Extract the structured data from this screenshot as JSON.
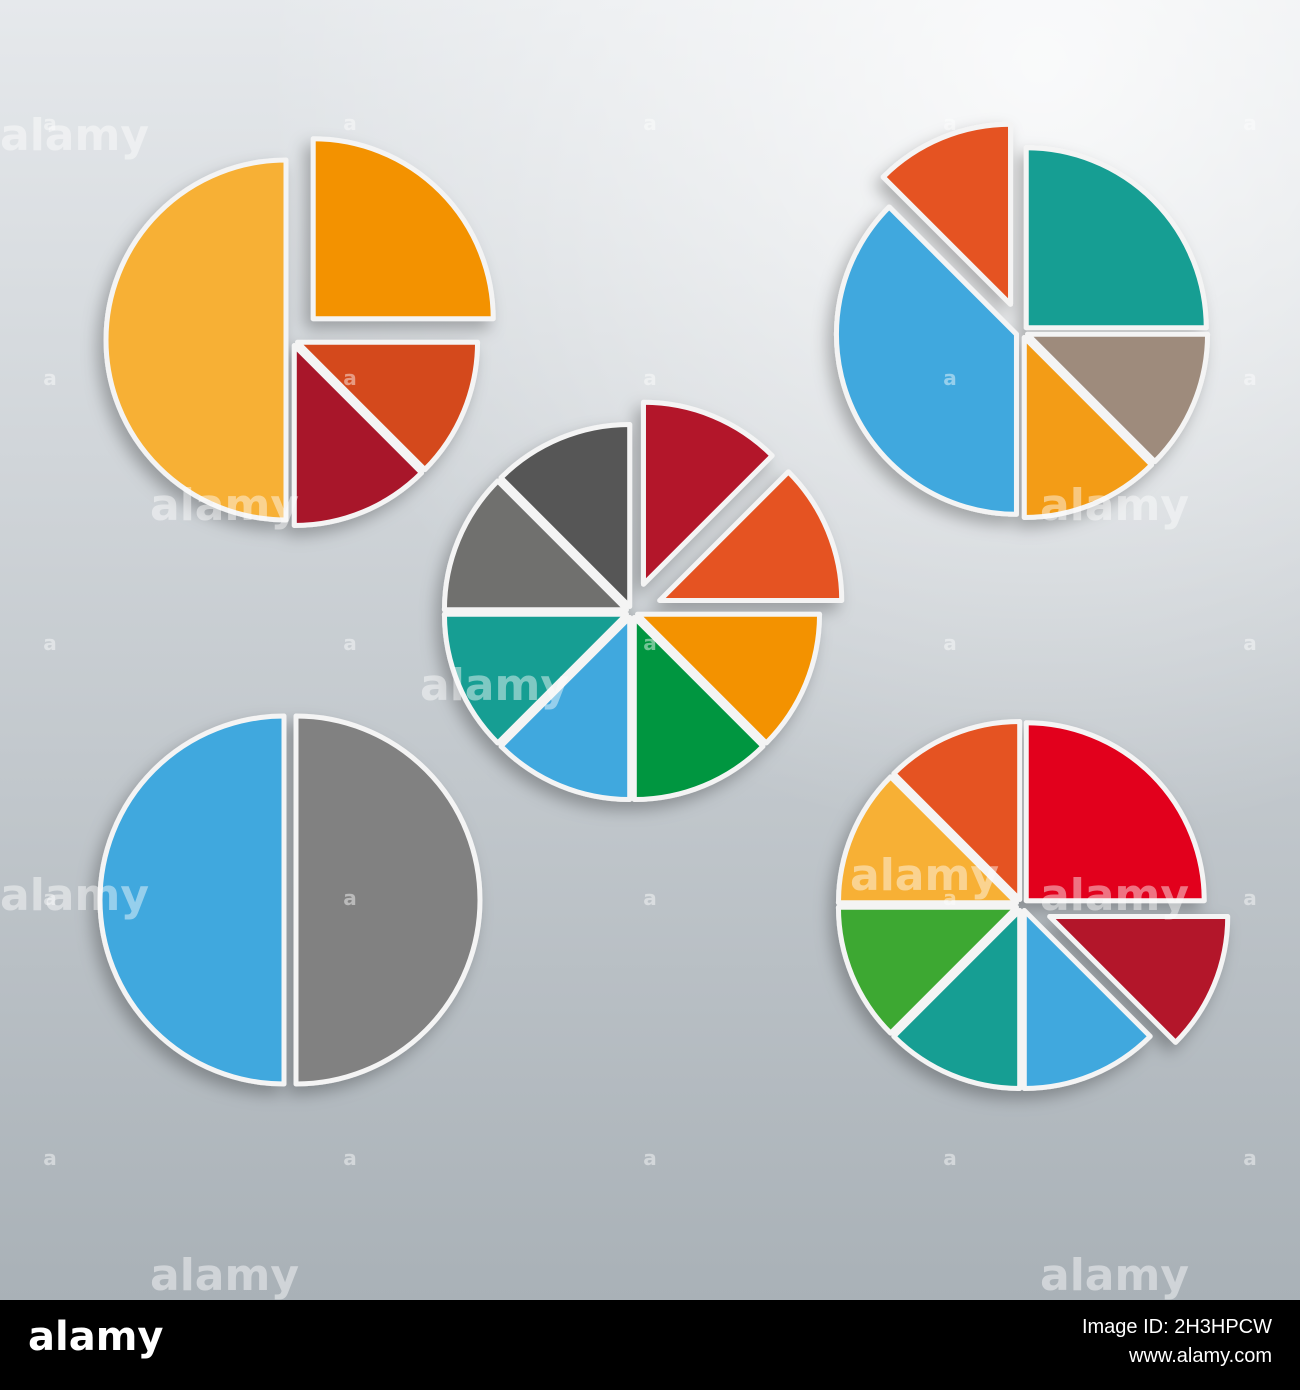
{
  "chart_data": [
    {
      "type": "pie",
      "values": [
        25,
        12.5,
        12.5,
        50
      ],
      "colors": [
        "#f39200",
        "#d4481e",
        "#a8172a",
        "#f7b035"
      ],
      "explode": [
        true,
        false,
        false,
        false
      ]
    },
    {
      "type": "pie",
      "values": [
        12.5,
        12.5,
        12.5,
        12.5,
        12.5,
        12.5,
        12.5,
        12.5
      ],
      "colors": [
        "#b31329",
        "#e55220",
        "#f39200",
        "#009640",
        "#3fa8de",
        "#199e93",
        "#6f6f6e",
        "#575756"
      ],
      "explode": [
        true,
        true,
        false,
        false,
        false,
        false,
        false,
        false
      ]
    },
    {
      "type": "pie",
      "values": [
        25,
        12.5,
        12.5,
        37.5,
        12.5
      ],
      "colors": [
        "#199e93",
        "#9e8b7c",
        "#f39c12",
        "#3fa8de",
        "#e55220"
      ],
      "explode": [
        false,
        false,
        false,
        false,
        true
      ]
    },
    {
      "type": "pie",
      "values": [
        50,
        50
      ],
      "colors": [
        "#818181",
        "#3fa8de"
      ],
      "explode": [
        false,
        false
      ]
    },
    {
      "type": "pie",
      "values": [
        25,
        12.5,
        12.5,
        12.5,
        12.5,
        12.5,
        12.5
      ],
      "colors": [
        "#e2001a",
        "#b31329",
        "#3fa8de",
        "#199e93",
        "#3ea832",
        "#f7b035",
        "#e55220"
      ],
      "explode": [
        false,
        true,
        false,
        false,
        false,
        false,
        false
      ]
    }
  ],
  "watermark": "alamy",
  "watermark_mark": "a",
  "footer": {
    "logo": "alamy",
    "image_id": "Image ID: 2H3HPCW",
    "url": "www.alamy.com"
  }
}
